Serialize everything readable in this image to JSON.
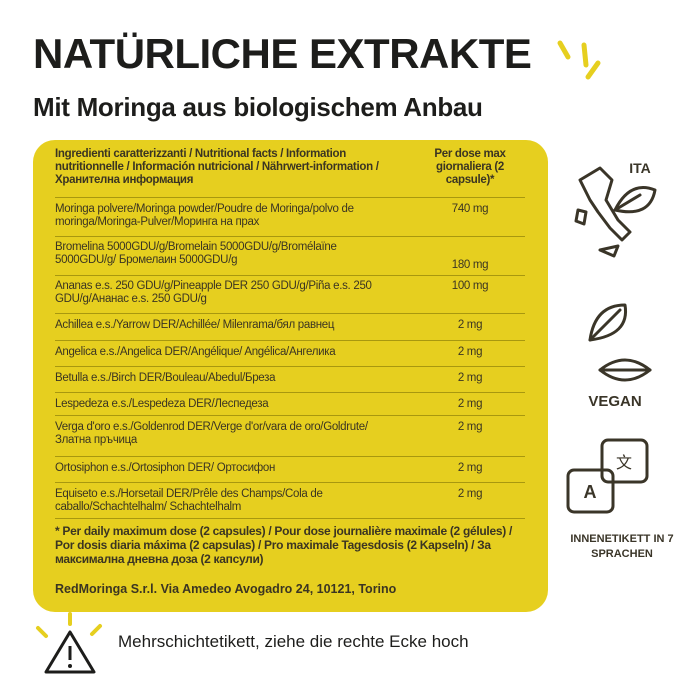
{
  "header": {
    "title": "NATÜRLICHE EXTRAKTE",
    "subtitle": "Mit Moringa aus biologischem Anbau"
  },
  "table": {
    "header": [
      "Ingredienti caratterizzanti / Nutritional facts / Information nutritionnelle / Información nutricional / Nährwert-information / Хранителна информация",
      "Per dose max giornaliera (2 capsule)*"
    ],
    "rows": [
      [
        "Moringa polvere/Moringa powder/Poudre de Moringa/polvo de moringa/Moringa-Pulver/Моринга на прах",
        "740 mg"
      ],
      [
        "Bromelina 5000GDU/g/Bromelain 5000GDU/g/Bromélaïne 5000GDU/g/ Бромелаин 5000GDU/g",
        "180 mg"
      ],
      [
        "Ananas e.s. 250 GDU/g/Pineapple DER 250 GDU/g/Piña e.s. 250 GDU/g/Ананас e.s. 250 GDU/g",
        "100 mg"
      ],
      [
        "Achillea e.s./Yarrow DER/Achillée/ Milenrama/бял равнец",
        "2 mg"
      ],
      [
        "Angelica e.s./Angelica DER/Angélique/ Angélica/Ангелика",
        "2 mg"
      ],
      [
        "Betulla e.s./Birch DER/Bouleau/Abedul/Бреза",
        "2 mg"
      ],
      [
        "Lespedeza e.s./Lespedeza DER/Леспедеза",
        "2 mg"
      ],
      [
        "Verga d'oro e.s./Goldenrod DER/Verge d'or/vara de oro/Goldrute/Златна пръчица",
        "2 mg"
      ],
      [
        "Ortosiphon e.s./Ortosiphon DER/ Ортосифон",
        "2 mg"
      ],
      [
        "Equiseto e.s./Horsetail DER/Prêle des Champs/Cola de caballo/Schachtelhalm/ Schachtelhalm",
        "2 mg"
      ]
    ],
    "footnote": "* Per daily maximum dose (2 capsules) / Pour dose journalière maximale (2 gélules) / Por dosis diaria máxima (2 capsulas) / Pro maximale Tagesdosis (2 Kapseln) / За максимална дневна доза (2 капсули)",
    "company": "RedMoringa S.r.l. Via Amedeo Avogadro 24, 10121, Torino"
  },
  "badges": [
    "ITA",
    "VEGAN",
    "INNENETIKETT IN 7 SPRACHEN"
  ],
  "notice": "Mehrschichtetikett, ziehe die rechte Ecke hoch"
}
